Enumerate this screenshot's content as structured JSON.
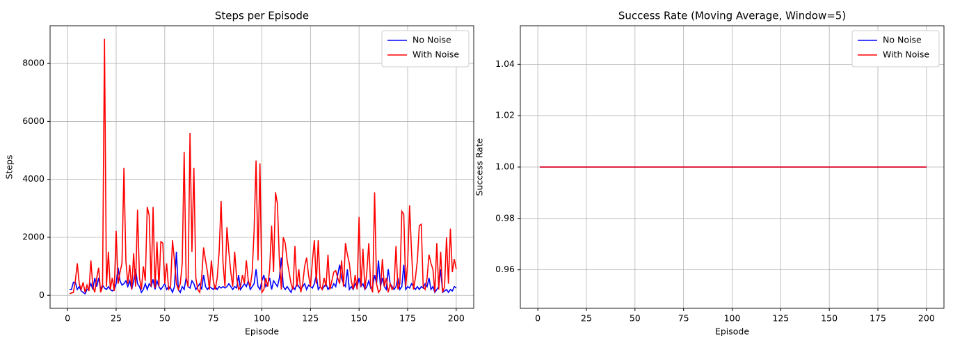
{
  "chart_data": [
    {
      "type": "line",
      "title": "Steps per Episode",
      "xlabel": "Episode",
      "ylabel": "Steps",
      "x": [
        1,
        2,
        3,
        4,
        5,
        6,
        7,
        8,
        9,
        10,
        11,
        12,
        13,
        14,
        15,
        16,
        17,
        18,
        19,
        20,
        21,
        22,
        23,
        24,
        25,
        26,
        27,
        28,
        29,
        30,
        31,
        32,
        33,
        34,
        35,
        36,
        37,
        38,
        39,
        40,
        41,
        42,
        43,
        44,
        45,
        46,
        47,
        48,
        49,
        50,
        51,
        52,
        53,
        54,
        55,
        56,
        57,
        58,
        59,
        60,
        61,
        62,
        63,
        64,
        65,
        66,
        67,
        68,
        69,
        70,
        71,
        72,
        73,
        74,
        75,
        76,
        77,
        78,
        79,
        80,
        81,
        82,
        83,
        84,
        85,
        86,
        87,
        88,
        89,
        90,
        91,
        92,
        93,
        94,
        95,
        96,
        97,
        98,
        99,
        100,
        101,
        102,
        103,
        104,
        105,
        106,
        107,
        108,
        109,
        110,
        111,
        112,
        113,
        114,
        115,
        116,
        117,
        118,
        119,
        120,
        121,
        122,
        123,
        124,
        125,
        126,
        127,
        128,
        129,
        130,
        131,
        132,
        133,
        134,
        135,
        136,
        137,
        138,
        139,
        140,
        141,
        142,
        143,
        144,
        145,
        146,
        147,
        148,
        149,
        150,
        151,
        152,
        153,
        154,
        155,
        156,
        157,
        158,
        159,
        160,
        161,
        162,
        163,
        164,
        165,
        166,
        167,
        168,
        169,
        170,
        171,
        172,
        173,
        174,
        175,
        176,
        177,
        178,
        179,
        180,
        181,
        182,
        183,
        184,
        185,
        186,
        187,
        188,
        189,
        190,
        191,
        192,
        193,
        194,
        195,
        196,
        197,
        198,
        199,
        200
      ],
      "series": [
        {
          "name": "No Noise",
          "color": "#0000ff",
          "values": [
            200,
            200,
            450,
            450,
            200,
            300,
            150,
            100,
            50,
            200,
            250,
            400,
            200,
            600,
            300,
            600,
            200,
            350,
            250,
            200,
            300,
            200,
            150,
            200,
            400,
            950,
            500,
            350,
            400,
            500,
            300,
            500,
            200,
            500,
            900,
            400,
            300,
            100,
            200,
            400,
            200,
            400,
            300,
            550,
            200,
            500,
            300,
            200,
            300,
            400,
            200,
            300,
            250,
            100,
            300,
            1500,
            200,
            100,
            300,
            200,
            600,
            300,
            250,
            500,
            400,
            200,
            300,
            400,
            200,
            700,
            300,
            200,
            300,
            250,
            200,
            300,
            200,
            300,
            250,
            300,
            250,
            300,
            400,
            300,
            200,
            300,
            250,
            700,
            200,
            300,
            400,
            300,
            500,
            200,
            300,
            400,
            900,
            300,
            200,
            500,
            700,
            300,
            400,
            600,
            200,
            500,
            400,
            300,
            600,
            1300,
            300,
            200,
            300,
            200,
            100,
            300,
            200,
            400,
            300,
            200,
            300,
            400,
            200,
            350,
            300,
            250,
            400,
            700,
            200,
            300,
            200,
            300,
            400,
            200,
            300,
            250,
            400,
            300,
            700,
            1050,
            600,
            400,
            300,
            900,
            200,
            300,
            200,
            400,
            300,
            600,
            300,
            400,
            200,
            300,
            500,
            250,
            300,
            700,
            400,
            1200,
            300,
            600,
            300,
            200,
            900,
            400,
            300,
            200,
            300,
            600,
            200,
            300,
            1050,
            200,
            300,
            250,
            400,
            300,
            200,
            300,
            200,
            300,
            250,
            400,
            300,
            600,
            200,
            300,
            100,
            200,
            300,
            900,
            100,
            150,
            200,
            100,
            200,
            150,
            300,
            250
          ]
        },
        {
          "name": "With Noise",
          "color": "#ff0000",
          "values": [
            50,
            80,
            100,
            500,
            1100,
            400,
            200,
            450,
            100,
            350,
            150,
            1200,
            300,
            100,
            600,
            950,
            100,
            300,
            8850,
            300,
            1500,
            200,
            600,
            150,
            2220,
            400,
            800,
            1100,
            4400,
            1200,
            400,
            1050,
            200,
            1450,
            300,
            2950,
            600,
            200,
            1000,
            500,
            3050,
            2750,
            300,
            3050,
            250,
            1850,
            300,
            1850,
            1800,
            400,
            1100,
            200,
            300,
            1900,
            1200,
            400,
            200,
            400,
            1100,
            4950,
            600,
            300,
            5600,
            1500,
            4400,
            600,
            200,
            100,
            600,
            1650,
            1200,
            800,
            200,
            1200,
            500,
            200,
            600,
            1500,
            3250,
            1100,
            300,
            2350,
            1500,
            800,
            300,
            1500,
            600,
            200,
            300,
            700,
            400,
            1200,
            500,
            300,
            800,
            2250,
            4650,
            1200,
            4550,
            100,
            200,
            600,
            300,
            900,
            2400,
            800,
            3550,
            3150,
            1200,
            200,
            2000,
            1800,
            1200,
            800,
            400,
            200,
            1700,
            300,
            900,
            100,
            400,
            1000,
            1300,
            700,
            300,
            1200,
            1900,
            400,
            1900,
            300,
            200,
            600,
            300,
            1400,
            200,
            500,
            800,
            850,
            600,
            400,
            1200,
            300,
            1800,
            1400,
            1100,
            500,
            200,
            700,
            200,
            2700,
            300,
            1600,
            200,
            800,
            1800,
            300,
            100,
            3550,
            400,
            100,
            200,
            1250,
            300,
            600,
            100,
            400,
            200,
            300,
            1700,
            200,
            400,
            2900,
            2800,
            300,
            1100,
            3100,
            1500,
            200,
            600,
            1200,
            2400,
            2450,
            300,
            200,
            600,
            1400,
            1100,
            900,
            100,
            1800,
            200,
            1500,
            100,
            300,
            2000,
            400,
            2300,
            800,
            1250,
            900
          ]
        }
      ],
      "xlim": [
        -9,
        209
      ],
      "xticks": [
        0,
        25,
        50,
        75,
        100,
        125,
        150,
        175,
        200
      ],
      "ylim": [
        -450,
        9300
      ],
      "yticks": [
        0,
        2000,
        4000,
        6000,
        8000
      ],
      "grid": true,
      "legend": "upper-right"
    },
    {
      "type": "line",
      "title": "Success Rate (Moving Average, Window=5)",
      "xlabel": "Episode",
      "ylabel": "Success Rate",
      "x": [
        1,
        2,
        3,
        4,
        5,
        6,
        7,
        8,
        9,
        10,
        11,
        12,
        13,
        14,
        15,
        16,
        17,
        18,
        19,
        20,
        21,
        22,
        23,
        24,
        25,
        26,
        27,
        28,
        29,
        30,
        31,
        32,
        33,
        34,
        35,
        36,
        37,
        38,
        39,
        40,
        41,
        42,
        43,
        44,
        45,
        46,
        47,
        48,
        49,
        50,
        51,
        52,
        53,
        54,
        55,
        56,
        57,
        58,
        59,
        60,
        61,
        62,
        63,
        64,
        65,
        66,
        67,
        68,
        69,
        70,
        71,
        72,
        73,
        74,
        75,
        76,
        77,
        78,
        79,
        80,
        81,
        82,
        83,
        84,
        85,
        86,
        87,
        88,
        89,
        90,
        91,
        92,
        93,
        94,
        95,
        96,
        97,
        98,
        99,
        100,
        101,
        102,
        103,
        104,
        105,
        106,
        107,
        108,
        109,
        110,
        111,
        112,
        113,
        114,
        115,
        116,
        117,
        118,
        119,
        120,
        121,
        122,
        123,
        124,
        125,
        126,
        127,
        128,
        129,
        130,
        131,
        132,
        133,
        134,
        135,
        136,
        137,
        138,
        139,
        140,
        141,
        142,
        143,
        144,
        145,
        146,
        147,
        148,
        149,
        150,
        151,
        152,
        153,
        154,
        155,
        156,
        157,
        158,
        159,
        160,
        161,
        162,
        163,
        164,
        165,
        166,
        167,
        168,
        169,
        170,
        171,
        172,
        173,
        174,
        175,
        176,
        177,
        178,
        179,
        180,
        181,
        182,
        183,
        184,
        185,
        186,
        187,
        188,
        189,
        190,
        191,
        192,
        193,
        194,
        195,
        196,
        197,
        198,
        199,
        200
      ],
      "series": [
        {
          "name": "No Noise",
          "color": "#0000ff",
          "values": [
            1,
            1,
            1,
            1,
            1,
            1,
            1,
            1,
            1,
            1,
            1,
            1,
            1,
            1,
            1,
            1,
            1,
            1,
            1,
            1,
            1,
            1,
            1,
            1,
            1,
            1,
            1,
            1,
            1,
            1,
            1,
            1,
            1,
            1,
            1,
            1,
            1,
            1,
            1,
            1,
            1,
            1,
            1,
            1,
            1,
            1,
            1,
            1,
            1,
            1,
            1,
            1,
            1,
            1,
            1,
            1,
            1,
            1,
            1,
            1,
            1,
            1,
            1,
            1,
            1,
            1,
            1,
            1,
            1,
            1,
            1,
            1,
            1,
            1,
            1,
            1,
            1,
            1,
            1,
            1,
            1,
            1,
            1,
            1,
            1,
            1,
            1,
            1,
            1,
            1,
            1,
            1,
            1,
            1,
            1,
            1,
            1,
            1,
            1,
            1,
            1,
            1,
            1,
            1,
            1,
            1,
            1,
            1,
            1,
            1,
            1,
            1,
            1,
            1,
            1,
            1,
            1,
            1,
            1,
            1,
            1,
            1,
            1,
            1,
            1,
            1,
            1,
            1,
            1,
            1,
            1,
            1,
            1,
            1,
            1,
            1,
            1,
            1,
            1,
            1,
            1,
            1,
            1,
            1,
            1,
            1,
            1,
            1,
            1,
            1,
            1,
            1,
            1,
            1,
            1,
            1,
            1,
            1,
            1,
            1,
            1,
            1,
            1,
            1,
            1,
            1,
            1,
            1,
            1,
            1,
            1,
            1,
            1,
            1,
            1,
            1,
            1,
            1,
            1,
            1,
            1,
            1,
            1,
            1,
            1,
            1,
            1,
            1,
            1,
            1,
            1,
            1,
            1,
            1,
            1,
            1,
            1,
            1,
            1,
            1
          ]
        },
        {
          "name": "With Noise",
          "color": "#ff0000",
          "values": [
            1,
            1,
            1,
            1,
            1,
            1,
            1,
            1,
            1,
            1,
            1,
            1,
            1,
            1,
            1,
            1,
            1,
            1,
            1,
            1,
            1,
            1,
            1,
            1,
            1,
            1,
            1,
            1,
            1,
            1,
            1,
            1,
            1,
            1,
            1,
            1,
            1,
            1,
            1,
            1,
            1,
            1,
            1,
            1,
            1,
            1,
            1,
            1,
            1,
            1,
            1,
            1,
            1,
            1,
            1,
            1,
            1,
            1,
            1,
            1,
            1,
            1,
            1,
            1,
            1,
            1,
            1,
            1,
            1,
            1,
            1,
            1,
            1,
            1,
            1,
            1,
            1,
            1,
            1,
            1,
            1,
            1,
            1,
            1,
            1,
            1,
            1,
            1,
            1,
            1,
            1,
            1,
            1,
            1,
            1,
            1,
            1,
            1,
            1,
            1,
            1,
            1,
            1,
            1,
            1,
            1,
            1,
            1,
            1,
            1,
            1,
            1,
            1,
            1,
            1,
            1,
            1,
            1,
            1,
            1,
            1,
            1,
            1,
            1,
            1,
            1,
            1,
            1,
            1,
            1,
            1,
            1,
            1,
            1,
            1,
            1,
            1,
            1,
            1,
            1,
            1,
            1,
            1,
            1,
            1,
            1,
            1,
            1,
            1,
            1,
            1,
            1,
            1,
            1,
            1,
            1,
            1,
            1,
            1,
            1,
            1,
            1,
            1,
            1,
            1,
            1,
            1,
            1,
            1,
            1,
            1,
            1,
            1,
            1,
            1,
            1,
            1,
            1,
            1,
            1,
            1,
            1,
            1,
            1,
            1,
            1,
            1,
            1,
            1,
            1,
            1,
            1,
            1,
            1,
            1,
            1,
            1,
            1,
            1,
            1
          ]
        }
      ],
      "xlim": [
        -9,
        209
      ],
      "xticks": [
        0,
        25,
        50,
        75,
        100,
        125,
        150,
        175,
        200
      ],
      "ylim": [
        0.945,
        1.055
      ],
      "yticks": [
        0.96,
        0.98,
        {
          "value": 1,
          "label": "1.00"
        },
        1.02,
        1.04
      ],
      "grid": true,
      "legend": "upper-right"
    }
  ]
}
